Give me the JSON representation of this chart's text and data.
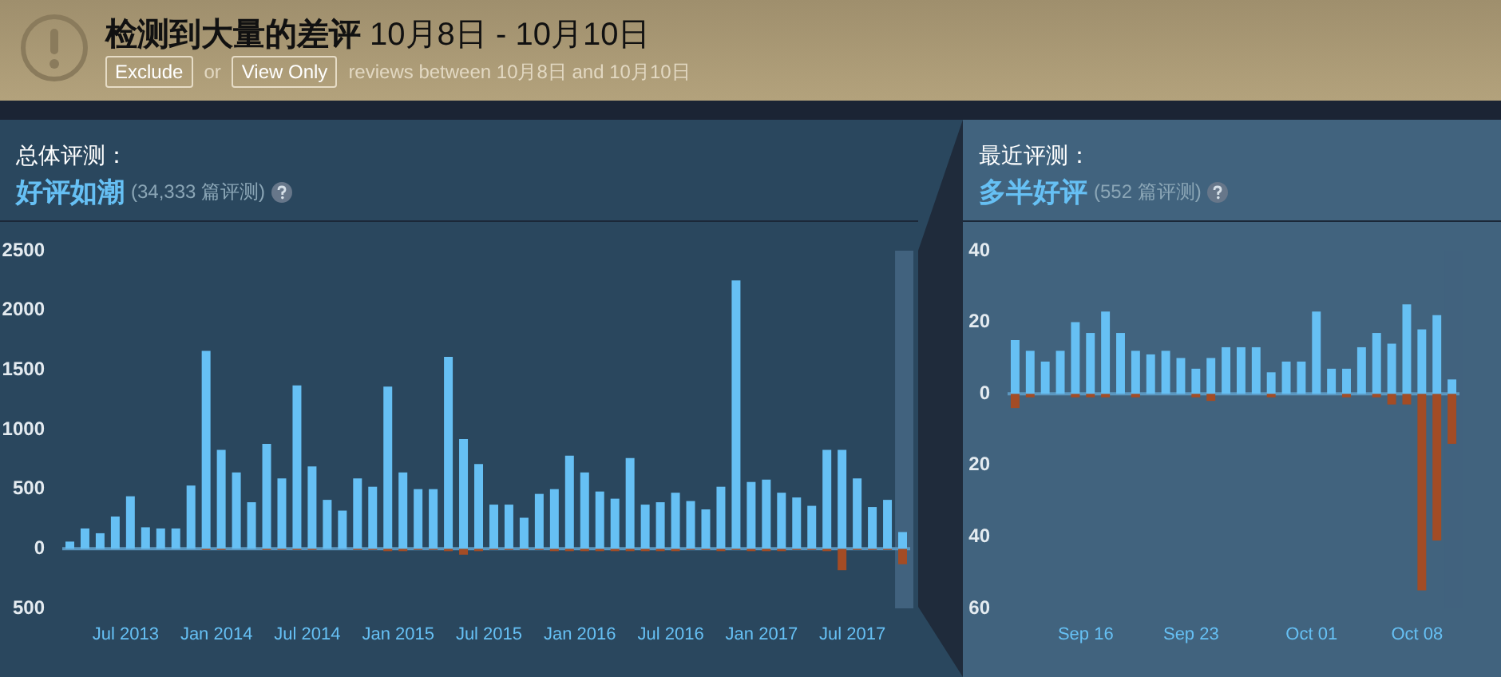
{
  "chart_data": [
    {
      "type": "other",
      "title": "检测到大量的差评",
      "subtitle": "10月8日 - 10月10日",
      "annotations": [
        "Exclude",
        "or",
        "View Only",
        "reviews between 10月8日 and 10月10日"
      ]
    },
    {
      "type": "bar",
      "title": "总体评测：",
      "subtitle": "好评如潮",
      "annotations": [
        "(34,333 篇评测)"
      ],
      "stacked": true,
      "grid": false,
      "categories": [
        null,
        null,
        null,
        null,
        "Jul 2013",
        null,
        null,
        null,
        null,
        null,
        "Jan 2014",
        null,
        null,
        null,
        null,
        null,
        "Jul 2014",
        null,
        null,
        null,
        null,
        null,
        "Jan 2015",
        null,
        null,
        null,
        null,
        null,
        "Jul 2015",
        null,
        null,
        null,
        null,
        null,
        "Jan 2016",
        null,
        null,
        null,
        null,
        null,
        "Jul 2016",
        null,
        null,
        null,
        null,
        null,
        "Jan 2017",
        null,
        null,
        null,
        null,
        null,
        "Jul 2017",
        null,
        null,
        null
      ],
      "ylim": [
        -500,
        2500
      ],
      "yticks": [
        {
          "value": -500,
          "label": "500"
        },
        0,
        500,
        1000,
        1500,
        2000,
        2500
      ],
      "ref_lines": [
        {
          "axis": "y",
          "value": 0,
          "color": "#5b97c0"
        }
      ],
      "series": [
        {
          "color": "#66c0f4",
          "values": [
            60,
            170,
            130,
            270,
            440,
            180,
            170,
            170,
            530,
            1660,
            830,
            640,
            390,
            880,
            590,
            1370,
            690,
            410,
            320,
            590,
            520,
            1360,
            640,
            500,
            500,
            1610,
            920,
            710,
            370,
            370,
            260,
            460,
            500,
            780,
            640,
            480,
            420,
            760,
            370,
            390,
            470,
            400,
            330,
            520,
            2250,
            560,
            580,
            470,
            430,
            360,
            830,
            830,
            590,
            350,
            410,
            140
          ]
        },
        {
          "color": "#a34c25",
          "values": [
            0,
            0,
            0,
            0,
            0,
            0,
            0,
            0,
            0,
            -10,
            -10,
            0,
            0,
            -10,
            -10,
            -10,
            -10,
            0,
            0,
            -10,
            -10,
            -20,
            -20,
            -10,
            -10,
            -20,
            -50,
            -20,
            -10,
            -10,
            -10,
            -10,
            -20,
            -20,
            -20,
            -20,
            -20,
            -20,
            -20,
            -20,
            -20,
            -10,
            -10,
            -20,
            -10,
            -20,
            -20,
            -20,
            -10,
            -10,
            -20,
            -180,
            -10,
            -10,
            -10,
            -130
          ]
        }
      ]
    },
    {
      "type": "bar",
      "title": "最近评测：",
      "subtitle": "多半好评",
      "annotations": [
        "(552 篇评测)"
      ],
      "stacked": true,
      "grid": false,
      "categories": [
        null,
        null,
        null,
        null,
        null,
        "Sep 16",
        null,
        null,
        null,
        null,
        null,
        null,
        "Sep 23",
        null,
        null,
        null,
        null,
        null,
        null,
        null,
        "Oct 01",
        null,
        null,
        null,
        null,
        null,
        null,
        "Oct 08",
        null,
        null
      ],
      "ylim": [
        -60,
        40
      ],
      "yticks": [
        {
          "value": -60,
          "label": "60"
        },
        {
          "value": -40,
          "label": "40"
        },
        {
          "value": -20,
          "label": "20"
        },
        0,
        20,
        40
      ],
      "ref_lines": [
        {
          "axis": "y",
          "value": 0,
          "color": "#5b97c0"
        }
      ],
      "series": [
        {
          "color": "#66c0f4",
          "values": [
            15,
            12,
            9,
            12,
            20,
            17,
            23,
            17,
            12,
            11,
            12,
            10,
            7,
            10,
            13,
            13,
            13,
            6,
            9,
            9,
            23,
            7,
            7,
            13,
            17,
            14,
            25,
            18,
            22,
            4
          ]
        },
        {
          "color": "#a34c25",
          "values": [
            -4,
            -1,
            0,
            0,
            -1,
            -1,
            -1,
            0,
            -1,
            0,
            0,
            0,
            -1,
            -2,
            0,
            0,
            0,
            -1,
            0,
            0,
            0,
            0,
            -1,
            0,
            -1,
            -3,
            -3,
            -55,
            -41,
            -14
          ]
        }
      ]
    }
  ]
}
